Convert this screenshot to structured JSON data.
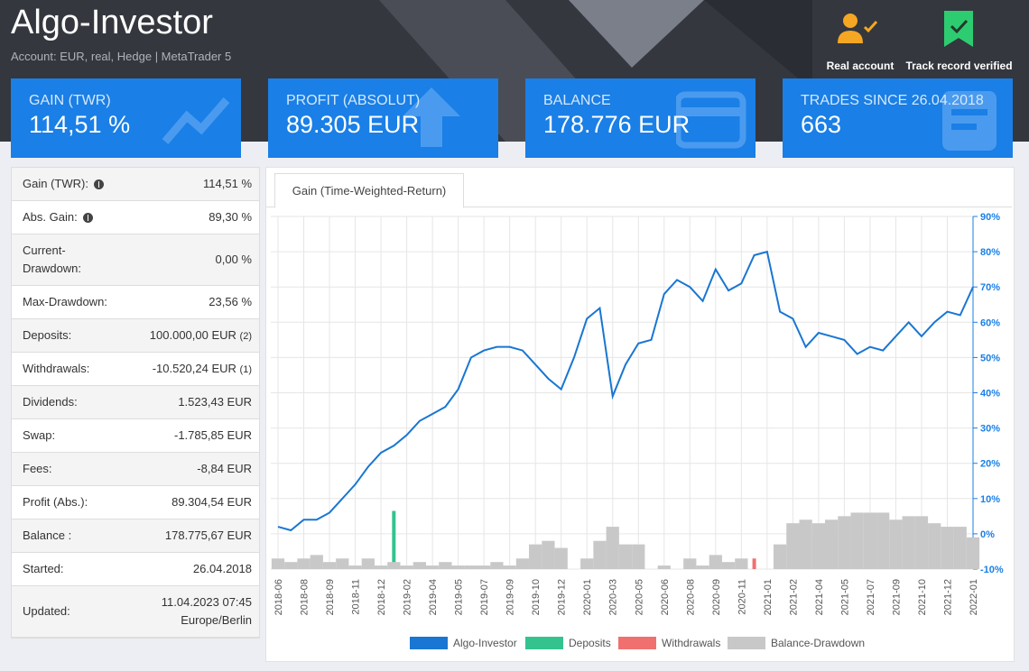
{
  "header": {
    "title": "Algo-Investor",
    "subtitle": "Account: EUR,  real, Hedge | MetaTrader 5",
    "badges": [
      "Real account",
      "Track record verified"
    ]
  },
  "cards": [
    {
      "label": "GAIN (TWR)",
      "value": "114,51 %"
    },
    {
      "label": "PROFIT (ABSOLUT)",
      "value": "89.305 EUR"
    },
    {
      "label": "BALANCE",
      "value": "178.776 EUR"
    },
    {
      "label": "TRADES SINCE 26.04.2018",
      "value": "663"
    }
  ],
  "stats": {
    "rows": [
      {
        "label": "Gain (TWR):",
        "value": "114,51 %",
        "info": true
      },
      {
        "label": "Abs. Gain:",
        "value": "89,30 %",
        "info": true
      },
      {
        "label": "Current-Drawdown:",
        "value": "0,00 %"
      },
      {
        "label": "Max-Drawdown:",
        "value": "23,56 %"
      },
      {
        "label": "Deposits:",
        "value": "100.000,00 EUR",
        "note": "(2)"
      },
      {
        "label": "Withdrawals:",
        "value": "-10.520,24 EUR",
        "note": "(1)"
      },
      {
        "label": "Dividends:",
        "value": "1.523,43 EUR"
      },
      {
        "label": "Swap:",
        "value": "-1.785,85 EUR"
      },
      {
        "label": "Fees:",
        "value": "-8,84 EUR"
      },
      {
        "label": "Profit (Abs.):",
        "value": "89.304,54 EUR"
      },
      {
        "label": "Balance :",
        "value": "178.775,67 EUR"
      },
      {
        "label": "Started:",
        "value": "26.04.2018"
      },
      {
        "label": "Updated:",
        "value": "11.04.2023 07:45 Europe/Berlin"
      }
    ]
  },
  "tab": "Gain (Time-Weighted-Return)",
  "chart_data": {
    "type": "line",
    "categories": [
      "2018-06",
      null,
      "2018-08",
      null,
      "2018-09",
      null,
      "2018-11",
      null,
      "2018-12",
      null,
      "2019-02",
      null,
      "2019-04",
      null,
      "2019-05",
      null,
      "2019-07",
      null,
      "2019-09",
      null,
      "2019-10",
      null,
      "2019-12",
      null,
      "2020-01",
      null,
      "2020-03",
      null,
      "2020-05",
      null,
      "2020-06",
      null,
      "2020-08",
      null,
      "2020-09",
      null,
      "2020-11",
      null,
      "2021-01",
      null,
      "2021-02",
      null,
      "2021-04",
      null,
      "2021-05",
      null,
      "2021-07",
      null,
      "2021-09",
      null,
      "2021-10",
      null,
      "2021-12",
      null,
      "2022-01"
    ],
    "series": [
      {
        "name": "Algo-Investor",
        "type": "line",
        "color": "#1976d2",
        "values": [
          2,
          1,
          4,
          4,
          6,
          10,
          14,
          19,
          23,
          25,
          28,
          32,
          34,
          36,
          41,
          50,
          52,
          53,
          53,
          52,
          48,
          44,
          41,
          50,
          61,
          64,
          39,
          48,
          54,
          55,
          68,
          72,
          70,
          66,
          75,
          69,
          71,
          79,
          80,
          63,
          61,
          53,
          57,
          56,
          55,
          51,
          53,
          52,
          56,
          60,
          56,
          60,
          63,
          62,
          70
        ]
      },
      {
        "name": "Deposits",
        "type": "bar",
        "color": "#34c38f",
        "values": [
          null,
          null,
          null,
          null,
          null,
          null,
          null,
          null,
          null,
          6.5,
          null,
          null,
          null,
          null,
          null,
          null,
          null,
          null,
          null,
          null,
          null,
          null,
          null,
          null,
          null,
          null,
          null,
          null,
          null,
          null,
          null,
          null,
          null,
          null,
          null,
          null,
          null,
          null,
          null,
          null,
          null,
          null,
          null,
          null,
          null,
          null,
          null,
          null,
          null,
          null,
          null,
          null,
          null,
          null,
          null
        ]
      },
      {
        "name": "Withdrawals",
        "type": "bar",
        "color": "#f07070",
        "values": [
          null,
          null,
          null,
          null,
          null,
          null,
          null,
          null,
          null,
          null,
          null,
          null,
          null,
          null,
          null,
          null,
          null,
          null,
          null,
          null,
          null,
          null,
          null,
          null,
          null,
          null,
          null,
          null,
          null,
          null,
          null,
          null,
          null,
          null,
          null,
          null,
          null,
          -7,
          null,
          null,
          null,
          null,
          null,
          null,
          null,
          null,
          null,
          null,
          null,
          null,
          null,
          null,
          null,
          null,
          null
        ]
      },
      {
        "name": "Balance-Drawdown",
        "type": "bar",
        "color": "#c8c8c8",
        "values": [
          -7,
          -8,
          -7,
          -6,
          -8,
          -7,
          -9,
          -7,
          -9,
          -8,
          -9,
          -8,
          -9,
          -8,
          -9,
          -9,
          -9,
          -8,
          -9,
          -7,
          -3,
          -2,
          -4,
          -10,
          -7,
          -2,
          2,
          -3,
          -3,
          -10,
          -9,
          -10,
          -7,
          -9,
          -6,
          -8,
          -7,
          -10,
          -10,
          -3,
          3,
          4,
          3,
          4,
          5,
          6,
          6,
          6,
          4,
          5,
          5,
          3,
          2,
          2,
          -1
        ]
      }
    ],
    "ylim": [
      -10,
      90
    ],
    "yticks": [
      {
        "value": -10,
        "label": "-10%"
      },
      {
        "value": 0,
        "label": "0%"
      },
      {
        "value": 10,
        "label": "10%"
      },
      {
        "value": 20,
        "label": "20%"
      },
      {
        "value": 30,
        "label": "30%"
      },
      {
        "value": 40,
        "label": "40%"
      },
      {
        "value": 50,
        "label": "50%"
      },
      {
        "value": 60,
        "label": "60%"
      },
      {
        "value": 70,
        "label": "70%"
      },
      {
        "value": 80,
        "label": "80%"
      },
      {
        "value": 90,
        "label": "90%"
      }
    ],
    "grid": true
  }
}
